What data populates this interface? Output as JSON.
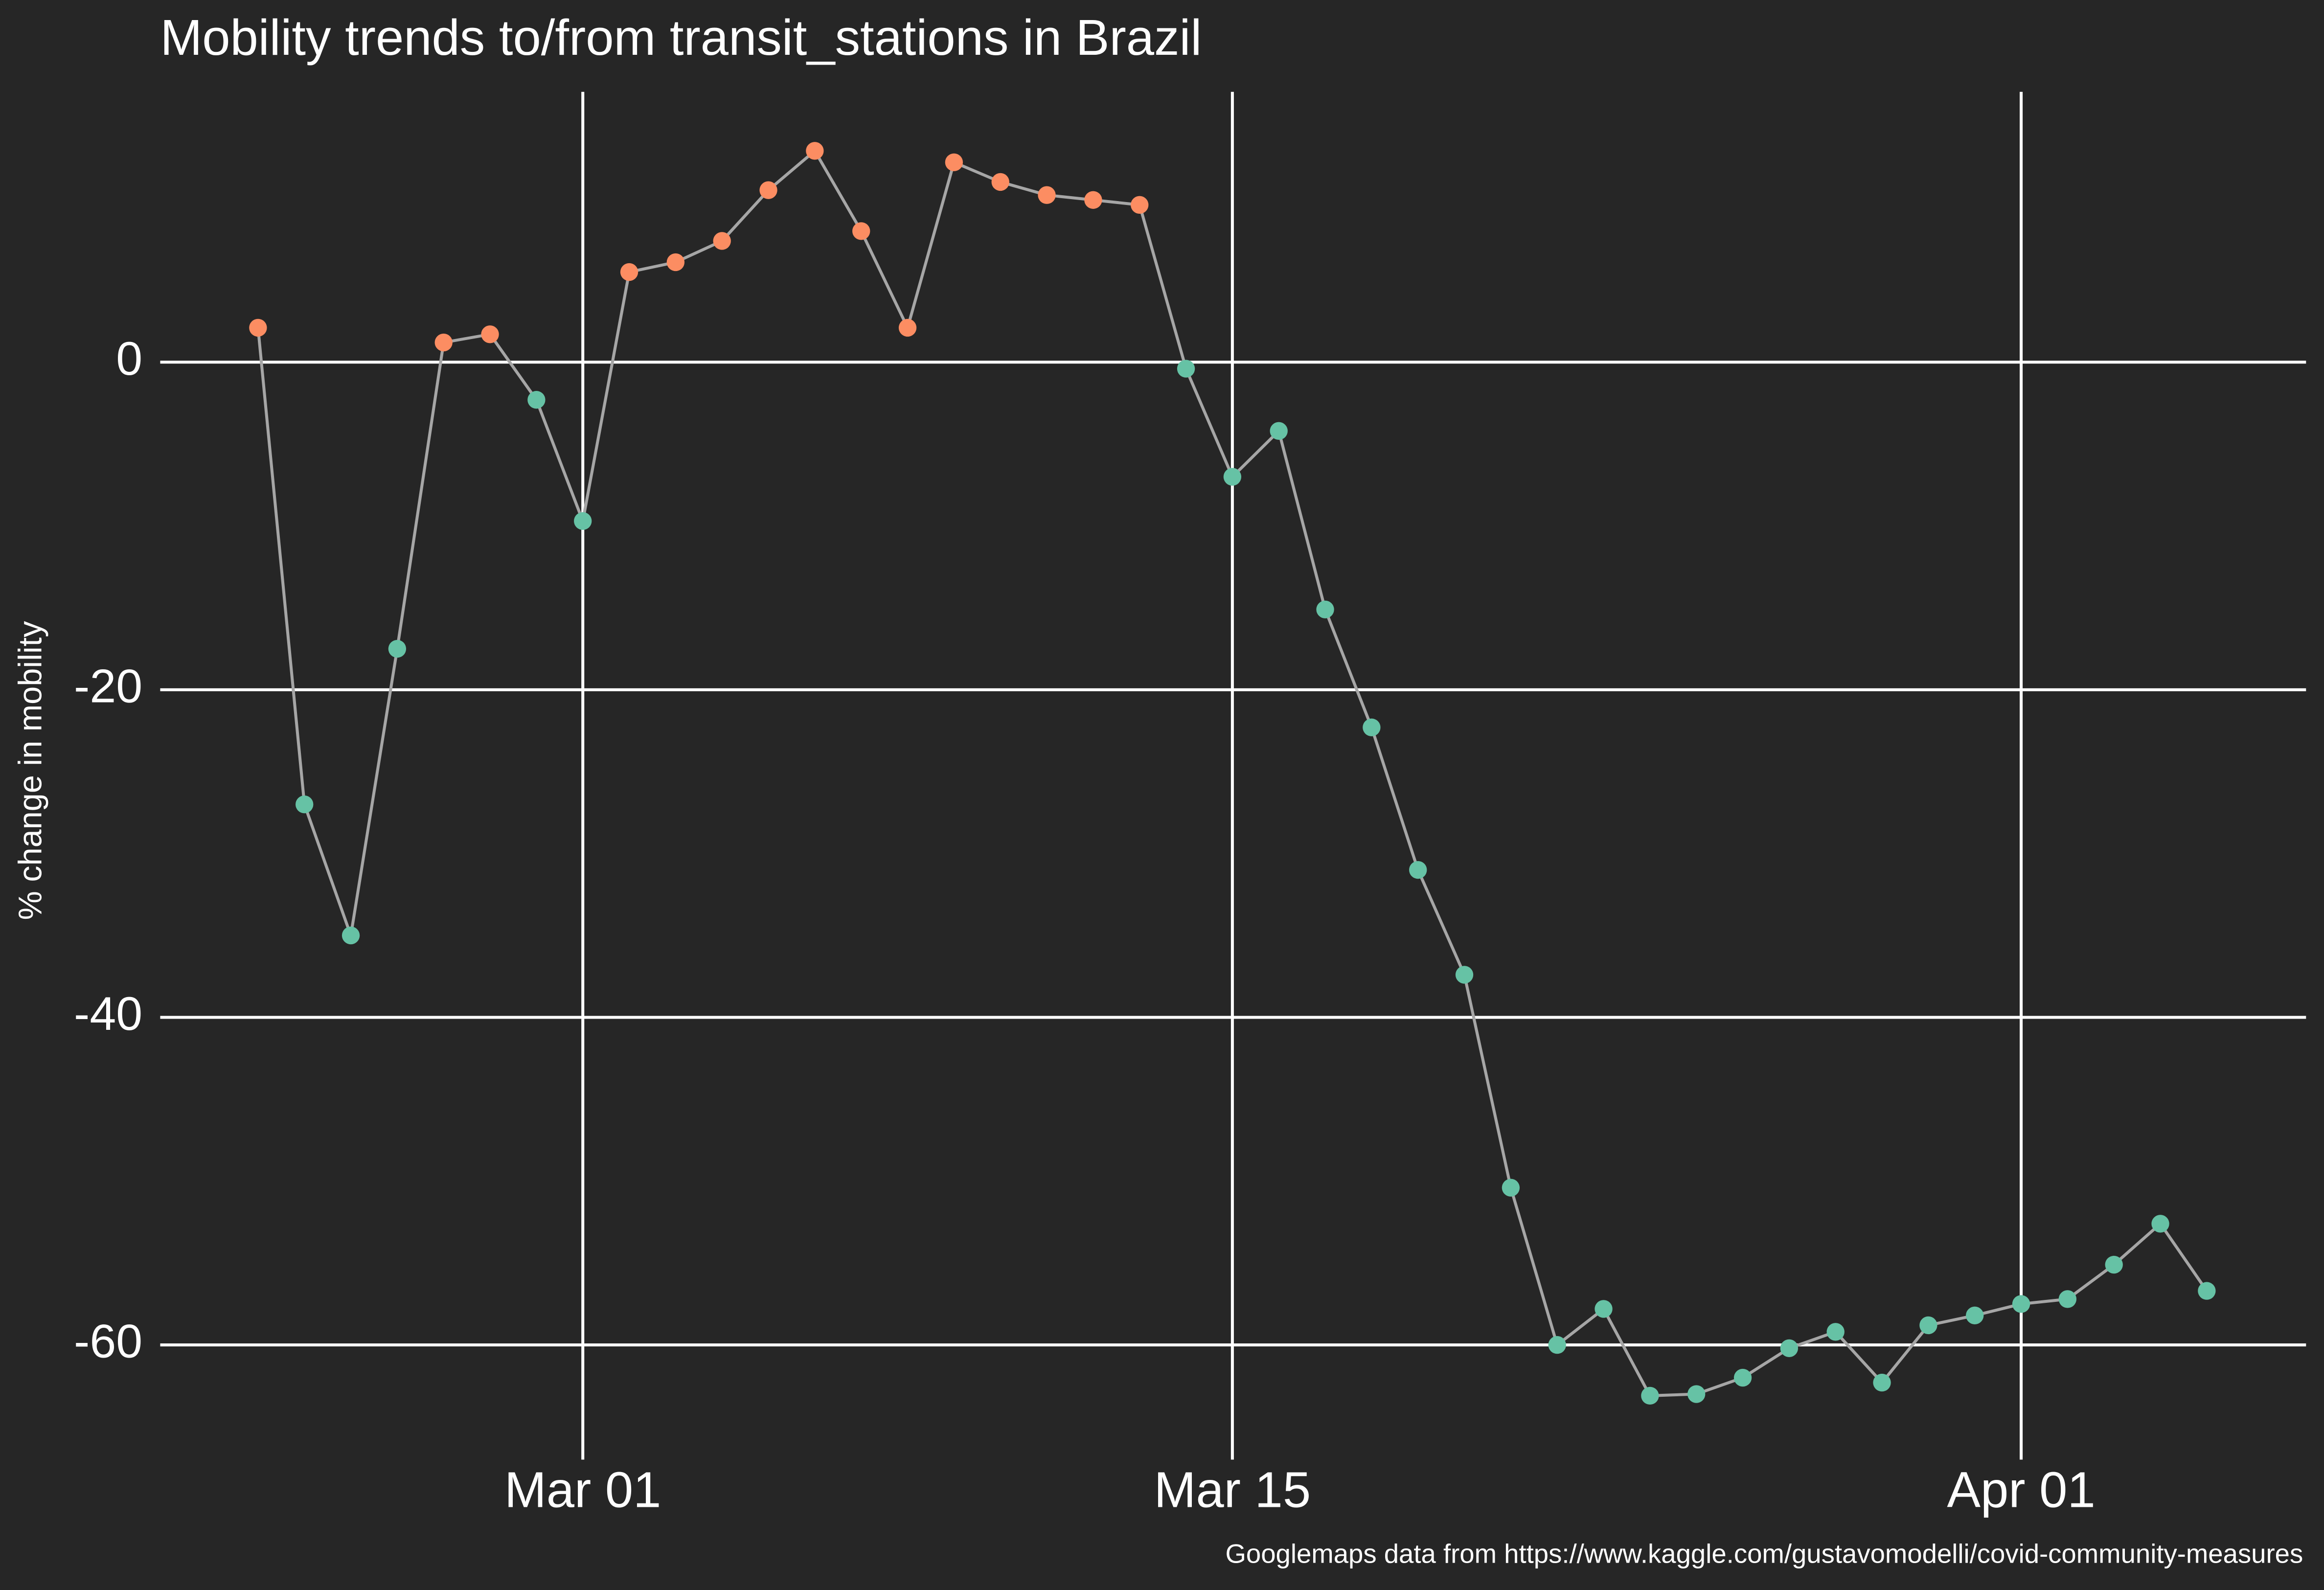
{
  "chart_data": {
    "type": "line",
    "title": "Mobility trends to/from transit_stations in Brazil",
    "y_label": "% change in mobility",
    "caption": "Googlemaps data from https://www.kaggle.com/gustavomodelli/covid-community-measures",
    "x": [
      "Feb 23",
      "Feb 24",
      "Feb 25",
      "Feb 26",
      "Feb 27",
      "Feb 28",
      "Feb 29",
      "Mar 01",
      "Mar 02",
      "Mar 03",
      "Mar 04",
      "Mar 05",
      "Mar 06",
      "Mar 07",
      "Mar 08",
      "Mar 09",
      "Mar 10",
      "Mar 11",
      "Mar 12",
      "Mar 13",
      "Mar 14",
      "Mar 15",
      "Mar 16",
      "Mar 17",
      "Mar 18",
      "Mar 19",
      "Mar 20",
      "Mar 21",
      "Mar 22",
      "Mar 23",
      "Mar 24",
      "Mar 25",
      "Mar 26",
      "Mar 27",
      "Mar 28",
      "Mar 29",
      "Mar 30",
      "Mar 31",
      "Apr 01",
      "Apr 02",
      "Apr 03",
      "Apr 04",
      "Apr 05"
    ],
    "values": [
      2.1,
      -27,
      -35,
      -17.5,
      1.2,
      1.7,
      -2.3,
      -9.7,
      5.5,
      6.1,
      7.4,
      10.5,
      12.9,
      8.0,
      2.1,
      12.2,
      11.0,
      10.2,
      9.9,
      9.6,
      -0.4,
      -7.0,
      -4.2,
      -15.1,
      -22.3,
      -31.0,
      -37.4,
      -50.4,
      -60.0,
      -57.8,
      -63.1,
      -63.0,
      -62.0,
      -60.2,
      -59.2,
      -62.3,
      -58.8,
      -58.2,
      -57.5,
      -57.2,
      -55.1,
      -52.6,
      -56.7
    ],
    "line_color": "#a6a6a6",
    "color_positive": "#fc8d62",
    "color_negative": "#66c2a5",
    "xticks": [
      "Mar 01",
      "Mar 15",
      "Apr 01"
    ],
    "ylim": [
      -67,
      16.5
    ],
    "yticks": [
      -60,
      -40,
      -20,
      0
    ],
    "grid": true
  }
}
